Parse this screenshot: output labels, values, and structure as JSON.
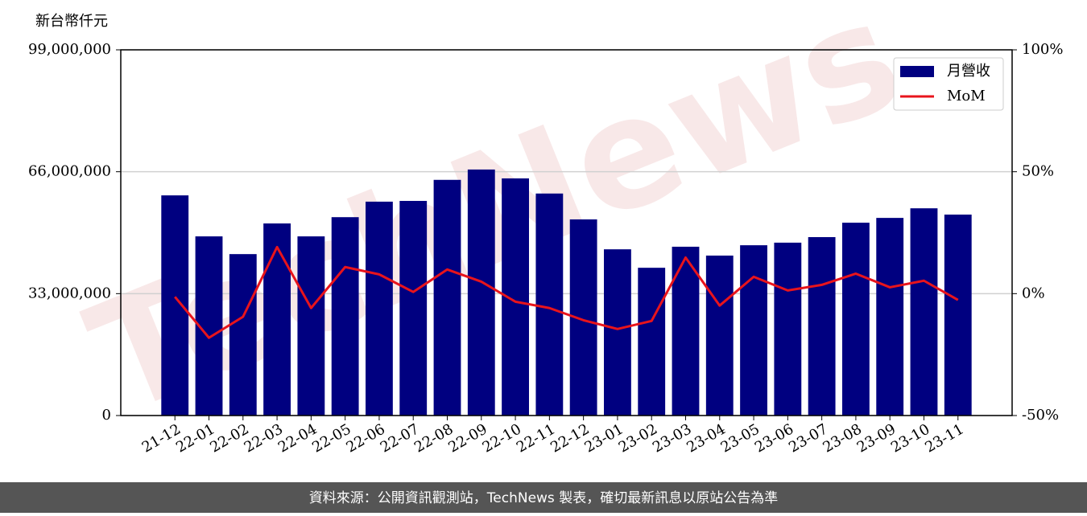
{
  "chart_data": {
    "type": "bar",
    "ylabel": "新台幣仟元",
    "watermark": "TechNews",
    "footer": "資料來源：公開資訊觀測站，TechNews 製表，確切最新訊息以原站公告為準",
    "categories": [
      "21-12",
      "22-01",
      "22-02",
      "22-03",
      "22-04",
      "22-05",
      "22-06",
      "22-07",
      "22-08",
      "22-09",
      "22-10",
      "22-11",
      "22-12",
      "23-01",
      "23-02",
      "23-03",
      "23-04",
      "23-05",
      "23-06",
      "23-07",
      "23-08",
      "23-09",
      "23-10",
      "23-11"
    ],
    "series": [
      {
        "name": "月營收",
        "type": "bar",
        "color": "#000080",
        "values": [
          59600000,
          48500000,
          43700000,
          52000000,
          48500000,
          53700000,
          57900000,
          58100000,
          63800000,
          66600000,
          64200000,
          60100000,
          53100000,
          45000000,
          40000000,
          45700000,
          43300000,
          46100000,
          46800000,
          48300000,
          52200000,
          53500000,
          56100000,
          54400000
        ]
      },
      {
        "name": "MoM",
        "type": "line",
        "axis": "y2",
        "color": "#e8141c",
        "values": [
          -1.3,
          -18.1,
          -9.5,
          19.1,
          -5.9,
          10.9,
          7.9,
          0.7,
          9.9,
          4.9,
          -3.3,
          -5.9,
          -10.9,
          -14.5,
          -11.2,
          14.8,
          -4.9,
          6.9,
          1.3,
          3.6,
          8.2,
          2.6,
          5.3,
          -2.6
        ]
      }
    ],
    "ylim": [
      0,
      99000000
    ],
    "yticks": [
      0,
      {
        "value": 33000000,
        "label": "33,000,000"
      },
      {
        "value": 66000000,
        "label": "66,000,000"
      },
      {
        "value": 99000000,
        "label": "99,000,000"
      }
    ],
    "y2lim": [
      -50,
      100
    ],
    "y2ticks": [
      {
        "value": -50,
        "label": "-50%"
      },
      {
        "value": 0,
        "label": "0%"
      },
      {
        "value": 50,
        "label": "50%"
      },
      {
        "value": 100,
        "label": "100%"
      }
    ],
    "grid": true,
    "legend": "upper right"
  }
}
